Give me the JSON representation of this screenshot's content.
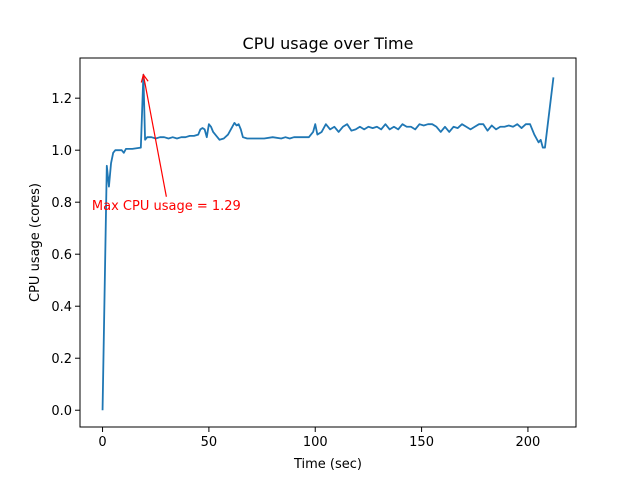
{
  "chart_data": {
    "type": "line",
    "title": "CPU usage over Time",
    "xlabel": "Time (sec)",
    "ylabel": "CPU usage (cores)",
    "x": [
      0,
      2,
      3,
      4,
      5,
      6,
      8,
      9,
      10,
      11,
      14,
      18,
      19.2,
      20,
      21,
      23,
      25,
      27,
      29,
      31,
      33,
      35,
      37,
      39,
      41,
      43,
      45,
      46,
      47,
      48,
      49,
      50,
      51,
      52,
      55,
      57,
      59,
      61,
      62,
      63,
      64,
      65,
      66,
      68,
      72,
      76,
      80,
      84,
      86,
      88,
      90,
      94,
      97,
      99,
      100,
      101,
      103,
      105,
      107,
      109,
      111,
      113,
      115,
      117,
      119,
      121,
      123,
      125,
      127,
      129,
      131,
      133,
      135,
      137,
      139,
      141,
      143,
      145,
      147,
      149,
      151,
      153,
      155,
      157,
      159,
      161,
      163,
      165,
      167,
      169,
      171,
      173,
      175,
      177,
      179,
      181,
      183,
      185,
      187,
      189,
      191,
      193,
      195,
      197,
      199,
      201,
      203,
      205,
      206,
      207,
      208,
      212
    ],
    "series": [
      {
        "name": "CPU usage",
        "color": "#1f77b4",
        "values": [
          0,
          0.94,
          0.86,
          0.95,
          0.99,
          1.0,
          1.0,
          1.0,
          0.99,
          1.005,
          1.005,
          1.01,
          1.29,
          1.04,
          1.05,
          1.05,
          1.045,
          1.05,
          1.05,
          1.045,
          1.05,
          1.045,
          1.05,
          1.05,
          1.055,
          1.055,
          1.06,
          1.08,
          1.085,
          1.08,
          1.05,
          1.1,
          1.09,
          1.07,
          1.04,
          1.045,
          1.06,
          1.09,
          1.105,
          1.095,
          1.1,
          1.08,
          1.05,
          1.045,
          1.045,
          1.045,
          1.05,
          1.045,
          1.05,
          1.045,
          1.05,
          1.05,
          1.05,
          1.07,
          1.1,
          1.06,
          1.07,
          1.1,
          1.08,
          1.09,
          1.07,
          1.09,
          1.1,
          1.075,
          1.08,
          1.09,
          1.08,
          1.09,
          1.085,
          1.09,
          1.08,
          1.1,
          1.08,
          1.09,
          1.08,
          1.1,
          1.09,
          1.09,
          1.08,
          1.1,
          1.095,
          1.1,
          1.1,
          1.09,
          1.07,
          1.09,
          1.07,
          1.09,
          1.085,
          1.1,
          1.09,
          1.08,
          1.09,
          1.1,
          1.1,
          1.075,
          1.095,
          1.08,
          1.09,
          1.09,
          1.095,
          1.09,
          1.1,
          1.085,
          1.1,
          1.1,
          1.06,
          1.03,
          1.04,
          1.01,
          1.01,
          1.28
        ]
      }
    ],
    "xlim": [
      -10.6,
      222.6
    ],
    "ylim": [
      -0.0645,
      1.3545
    ],
    "xticks": [
      0,
      50,
      100,
      150,
      200
    ],
    "yticks": [
      {
        "value": 0,
        "label": "0.0"
      },
      0.2,
      0.4,
      0.6,
      0.8,
      {
        "value": 1,
        "label": "1.0"
      },
      1.2
    ],
    "annotation": {
      "text": "Max CPU usage = 1.29",
      "xy": [
        19.2,
        1.29
      ],
      "xytext": [
        -5,
        0.79
      ],
      "color": "red"
    }
  }
}
